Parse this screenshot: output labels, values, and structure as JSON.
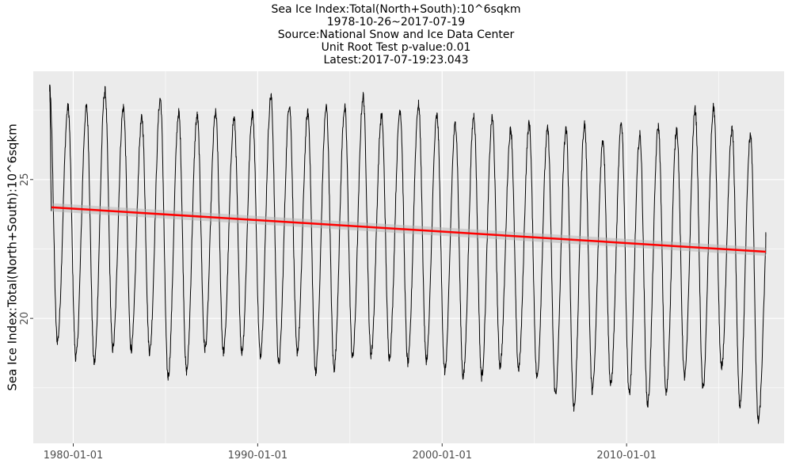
{
  "chart_data": {
    "type": "line",
    "title_lines": [
      "Sea Ice Index:Total(North+South):10^6sqkm",
      "1978-10-26~2017-07-19",
      "Source:National Snow and Ice Data Center",
      "Unit Root Test p-value:0.01",
      "Latest:2017-07-19:23.043"
    ],
    "xlabel": "",
    "ylabel": "Sea Ice Index:Total(North+South):10^6sqkm",
    "x_range": [
      "1977-10-31",
      "2018-07-15"
    ],
    "y_range": [
      15.5,
      28.9
    ],
    "x_ticks": [
      "1980-01-01",
      "1990-01-01",
      "2000-01-01",
      "2010-01-01"
    ],
    "y_ticks": [
      "20",
      "25"
    ],
    "grid": true,
    "series": [
      {
        "color": "#000000",
        "seasonal_extremes": {
          "years": [
            1978,
            1979,
            1980,
            1981,
            1982,
            1983,
            1984,
            1985,
            1986,
            1987,
            1988,
            1989,
            1990,
            1991,
            1992,
            1993,
            1994,
            1995,
            1996,
            1997,
            1998,
            1999,
            2000,
            2001,
            2002,
            2003,
            2004,
            2005,
            2006,
            2007,
            2008,
            2009,
            2010,
            2011,
            2012,
            2013,
            2014,
            2015,
            2016,
            2017
          ],
          "annual_max": [
            28.3,
            27.6,
            27.6,
            28.2,
            27.6,
            27.2,
            27.9,
            27.4,
            27.3,
            27.4,
            27.2,
            27.4,
            28.0,
            27.7,
            27.4,
            27.6,
            27.6,
            28.0,
            27.3,
            27.5,
            27.7,
            27.3,
            27.0,
            27.3,
            27.2,
            26.8,
            27.0,
            26.8,
            26.8,
            27.0,
            26.4,
            27.0,
            26.6,
            26.9,
            26.8,
            27.5,
            27.6,
            26.8,
            26.6,
            24.2
          ],
          "annual_min": [
            null,
            19.2,
            18.6,
            18.4,
            18.9,
            18.9,
            18.8,
            17.9,
            18.1,
            18.9,
            18.8,
            18.8,
            18.7,
            18.4,
            18.8,
            18.1,
            18.2,
            18.6,
            18.7,
            18.6,
            18.4,
            18.5,
            18.1,
            17.9,
            17.9,
            18.3,
            18.2,
            17.9,
            17.3,
            16.8,
            17.4,
            17.6,
            17.3,
            16.9,
            17.3,
            17.9,
            17.5,
            18.2,
            16.9,
            16.3
          ]
        },
        "latest": {
          "date": "2017-07-19",
          "value": 23.043
        }
      },
      {
        "type": "linear_trend",
        "color": "#ff0000",
        "x": [
          "1978-10-26",
          "2017-07-19"
        ],
        "y": [
          24.0,
          22.4
        ]
      }
    ]
  }
}
